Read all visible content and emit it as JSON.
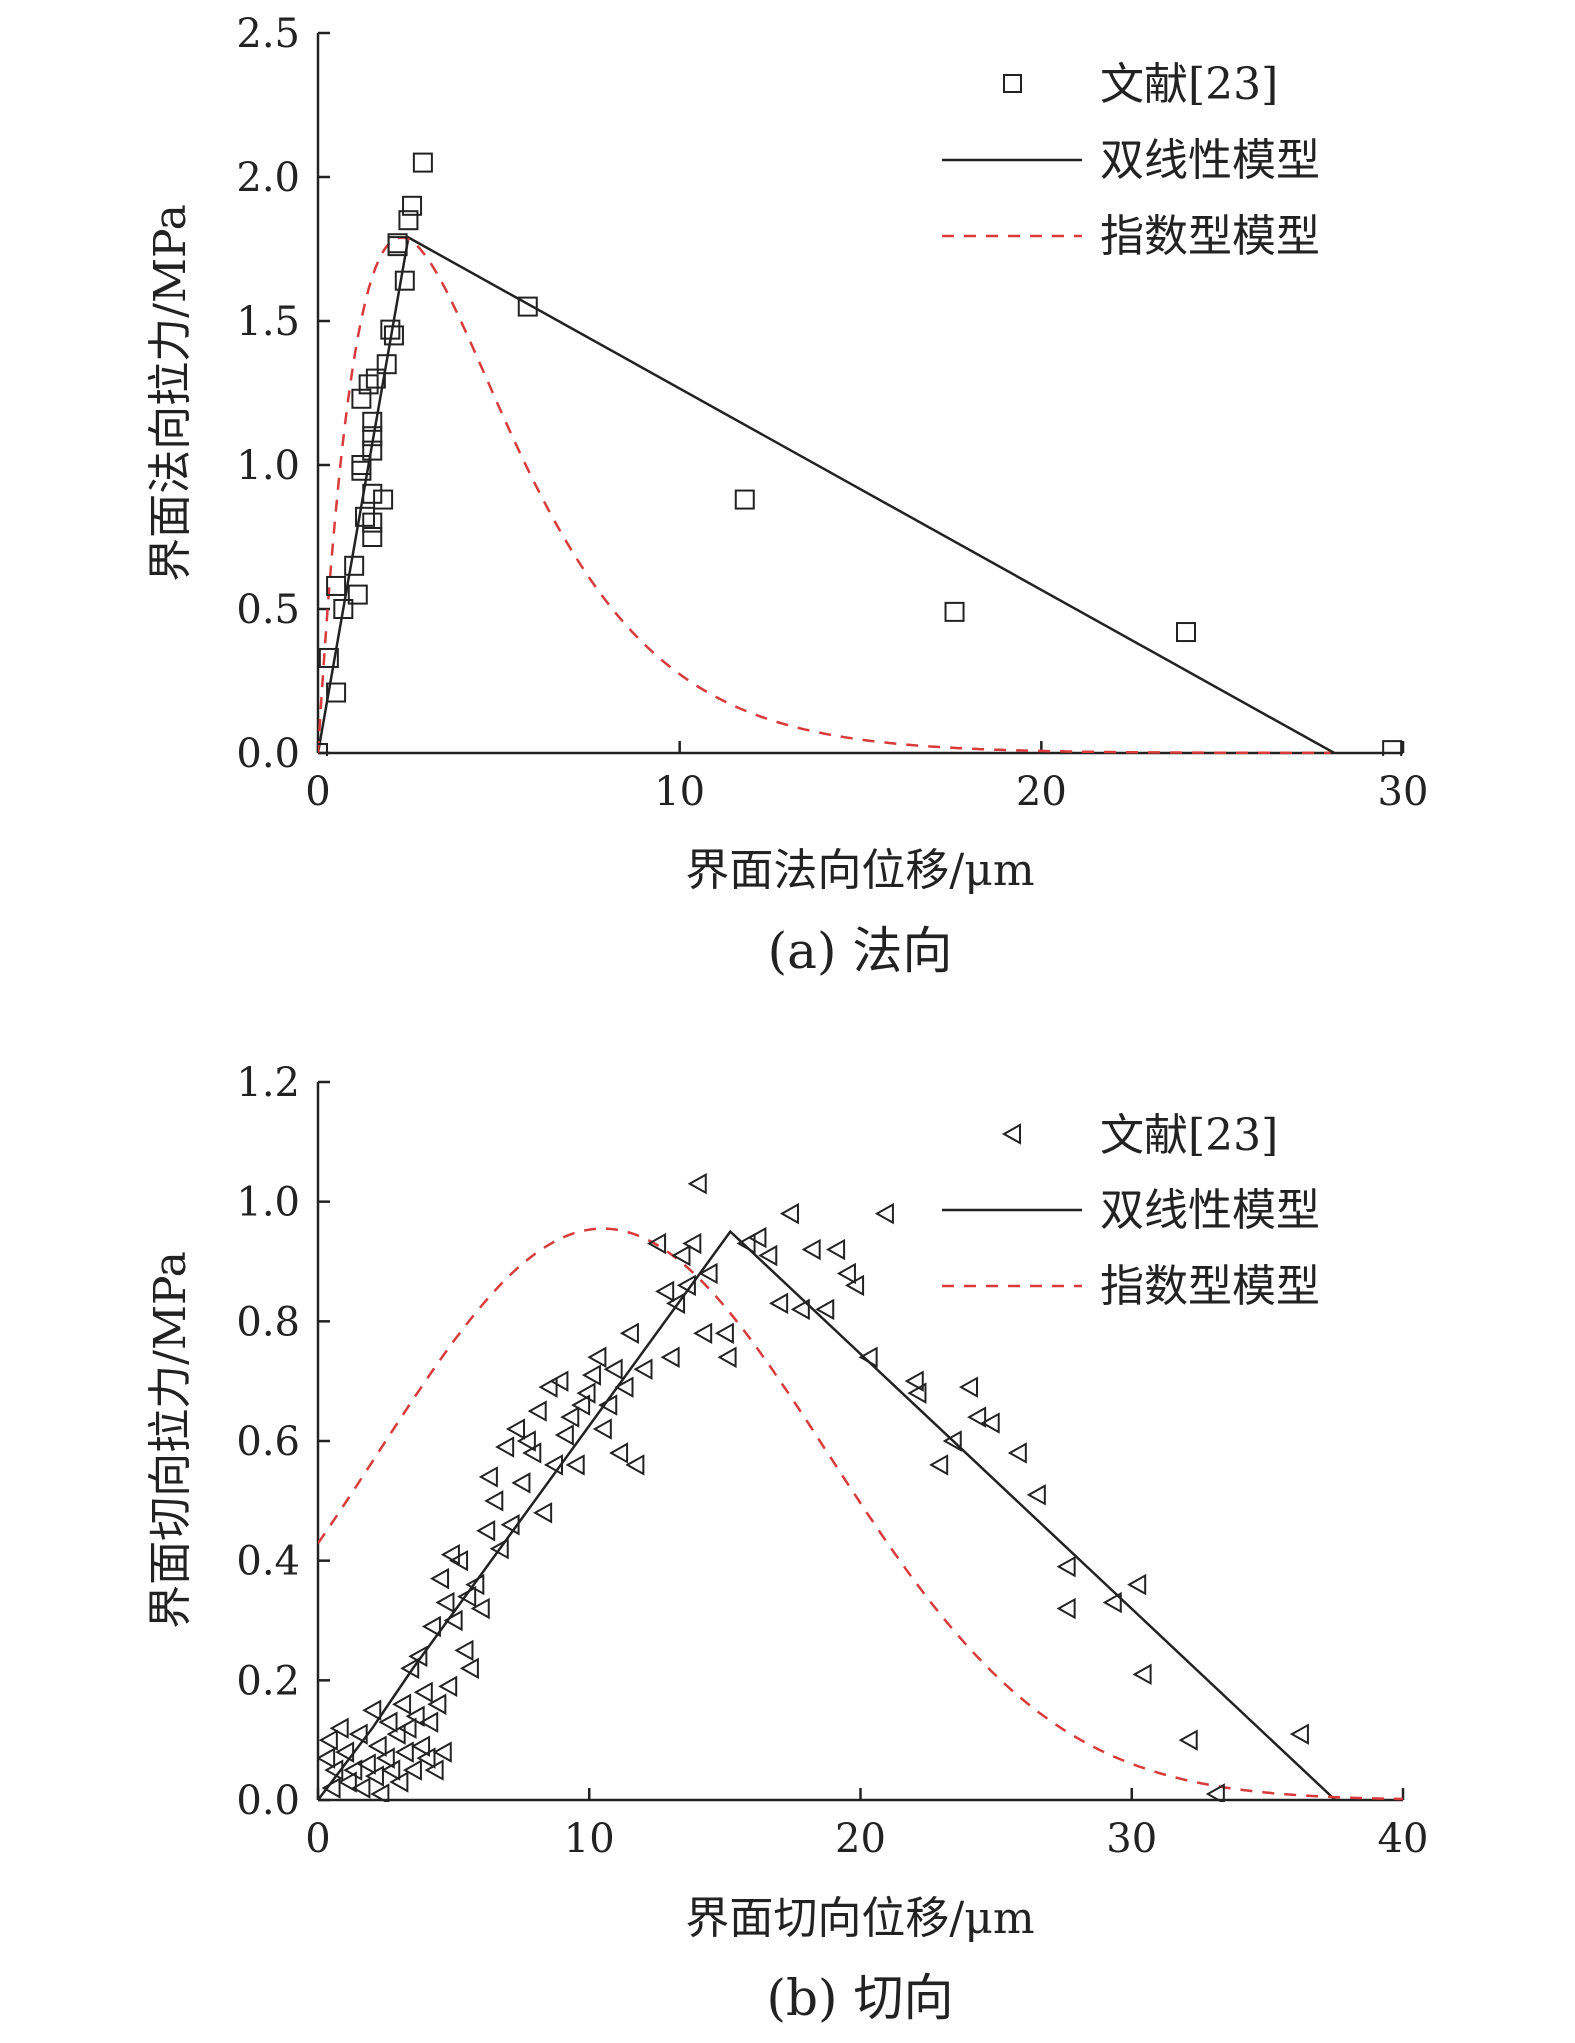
{
  "chart_data": [
    {
      "type": "scatter",
      "caption": "(a) 法向",
      "xlabel": "界面法向位移/μm",
      "ylabel": "界面法向拉力/MPa",
      "xlim": [
        0,
        30
      ],
      "ylim": [
        0,
        2.5
      ],
      "xticks": [
        0,
        10,
        20,
        30
      ],
      "xtick_labels": [
        "0",
        "10",
        "20",
        "30"
      ],
      "yticks": [
        0,
        0.5,
        1.0,
        1.5,
        2.0,
        2.5
      ],
      "ytick_labels": [
        "0.0",
        "0.5",
        "1.0",
        "1.5",
        "2.0",
        "2.5"
      ],
      "legend_position": "top-right",
      "grid": false,
      "series": [
        {
          "name": "文献[23]",
          "kind": "scatter",
          "marker": "square",
          "color": "#222222",
          "points": [
            [
              0.0,
              0.0
            ],
            [
              0.3,
              0.33
            ],
            [
              0.5,
              0.21
            ],
            [
              0.5,
              0.58
            ],
            [
              0.7,
              0.5
            ],
            [
              1.0,
              0.65
            ],
            [
              1.1,
              0.55
            ],
            [
              1.2,
              0.98
            ],
            [
              1.2,
              1.23
            ],
            [
              1.2,
              1.0
            ],
            [
              1.3,
              0.82
            ],
            [
              1.4,
              1.28
            ],
            [
              1.5,
              0.9
            ],
            [
              1.5,
              0.8
            ],
            [
              1.5,
              0.75
            ],
            [
              1.5,
              1.15
            ],
            [
              1.5,
              1.05
            ],
            [
              1.5,
              1.1
            ],
            [
              1.6,
              1.3
            ],
            [
              1.8,
              0.88
            ],
            [
              1.9,
              1.35
            ],
            [
              2.0,
              1.47
            ],
            [
              2.1,
              1.45
            ],
            [
              2.2,
              1.76
            ],
            [
              2.2,
              1.77
            ],
            [
              2.4,
              1.64
            ],
            [
              2.5,
              1.85
            ],
            [
              2.6,
              1.9
            ],
            [
              2.9,
              2.05
            ],
            [
              5.8,
              1.55
            ],
            [
              11.8,
              0.88
            ],
            [
              17.6,
              0.49
            ],
            [
              24.0,
              0.42
            ],
            [
              29.7,
              0.01
            ]
          ]
        },
        {
          "name": "双线性模型",
          "kind": "line",
          "color": "#222222",
          "dash": "",
          "points": [
            [
              0,
              0
            ],
            [
              2.5,
              1.79
            ],
            [
              28.1,
              0
            ]
          ]
        },
        {
          "name": "指数型模型",
          "kind": "curve",
          "color": "#d93a3a",
          "dash": "12 10",
          "formula": "exponential traction-separation",
          "peak_x": 2.3,
          "peak_y": 1.79,
          "x_range": [
            0,
            28
          ]
        }
      ]
    },
    {
      "type": "scatter",
      "caption": "(b) 切向",
      "xlabel": "界面切向位移/μm",
      "ylabel": "界面切向拉力/MPa",
      "xlim": [
        0,
        40
      ],
      "ylim": [
        0,
        1.2
      ],
      "xticks": [
        0,
        10,
        20,
        30,
        40
      ],
      "xtick_labels": [
        "0",
        "10",
        "20",
        "30",
        "40"
      ],
      "yticks": [
        0,
        0.2,
        0.4,
        0.6,
        0.8,
        1.0,
        1.2
      ],
      "ytick_labels": [
        "0.0",
        "0.2",
        "0.4",
        "0.6",
        "0.8",
        "1.0",
        "1.2"
      ],
      "legend_position": "top-right",
      "grid": false,
      "series": [
        {
          "name": "文献[23]",
          "kind": "scatter",
          "marker": "triangle-left",
          "color": "#222222",
          "points": [
            [
              0.3,
              0.07
            ],
            [
              0.4,
              0.1
            ],
            [
              0.5,
              0.02
            ],
            [
              0.6,
              0.05
            ],
            [
              0.8,
              0.12
            ],
            [
              1.0,
              0.08
            ],
            [
              1.1,
              0.03
            ],
            [
              1.3,
              0.05
            ],
            [
              1.5,
              0.11
            ],
            [
              1.6,
              0.02
            ],
            [
              1.8,
              0.06
            ],
            [
              2.0,
              0.15
            ],
            [
              2.1,
              0.04
            ],
            [
              2.2,
              0.09
            ],
            [
              2.3,
              0.01
            ],
            [
              2.5,
              0.07
            ],
            [
              2.6,
              0.13
            ],
            [
              2.7,
              0.05
            ],
            [
              2.9,
              0.11
            ],
            [
              3.0,
              0.03
            ],
            [
              3.1,
              0.16
            ],
            [
              3.2,
              0.08
            ],
            [
              3.3,
              0.12
            ],
            [
              3.4,
              0.22
            ],
            [
              3.5,
              0.05
            ],
            [
              3.6,
              0.14
            ],
            [
              3.7,
              0.24
            ],
            [
              3.8,
              0.09
            ],
            [
              3.9,
              0.18
            ],
            [
              4.0,
              0.07
            ],
            [
              4.1,
              0.13
            ],
            [
              4.2,
              0.29
            ],
            [
              4.3,
              0.05
            ],
            [
              4.4,
              0.16
            ],
            [
              4.5,
              0.37
            ],
            [
              4.6,
              0.08
            ],
            [
              4.7,
              0.33
            ],
            [
              4.8,
              0.19
            ],
            [
              4.9,
              0.41
            ],
            [
              5.0,
              0.3
            ],
            [
              5.2,
              0.4
            ],
            [
              5.4,
              0.25
            ],
            [
              5.5,
              0.34
            ],
            [
              5.6,
              0.22
            ],
            [
              5.8,
              0.36
            ],
            [
              6.0,
              0.32
            ],
            [
              6.2,
              0.45
            ],
            [
              6.3,
              0.54
            ],
            [
              6.5,
              0.5
            ],
            [
              6.7,
              0.42
            ],
            [
              6.9,
              0.59
            ],
            [
              7.1,
              0.46
            ],
            [
              7.3,
              0.62
            ],
            [
              7.5,
              0.53
            ],
            [
              7.7,
              0.6
            ],
            [
              7.9,
              0.58
            ],
            [
              8.1,
              0.65
            ],
            [
              8.3,
              0.48
            ],
            [
              8.5,
              0.69
            ],
            [
              8.7,
              0.56
            ],
            [
              8.9,
              0.7
            ],
            [
              9.1,
              0.61
            ],
            [
              9.3,
              0.64
            ],
            [
              9.5,
              0.56
            ],
            [
              9.7,
              0.66
            ],
            [
              9.9,
              0.68
            ],
            [
              10.1,
              0.71
            ],
            [
              10.3,
              0.74
            ],
            [
              10.5,
              0.62
            ],
            [
              10.7,
              0.66
            ],
            [
              10.9,
              0.72
            ],
            [
              11.1,
              0.58
            ],
            [
              11.3,
              0.69
            ],
            [
              11.5,
              0.78
            ],
            [
              11.7,
              0.56
            ],
            [
              12.0,
              0.72
            ],
            [
              12.5,
              0.93
            ],
            [
              12.8,
              0.85
            ],
            [
              13.0,
              0.74
            ],
            [
              13.2,
              0.83
            ],
            [
              13.4,
              0.91
            ],
            [
              13.6,
              0.86
            ],
            [
              13.8,
              0.93
            ],
            [
              14.0,
              1.03
            ],
            [
              14.2,
              0.78
            ],
            [
              14.4,
              0.88
            ],
            [
              15.0,
              0.78
            ],
            [
              15.1,
              0.74
            ],
            [
              15.8,
              0.93
            ],
            [
              16.2,
              0.94
            ],
            [
              16.6,
              0.91
            ],
            [
              17.0,
              0.83
            ],
            [
              17.4,
              0.98
            ],
            [
              17.8,
              0.82
            ],
            [
              18.2,
              0.92
            ],
            [
              18.7,
              0.82
            ],
            [
              19.1,
              0.92
            ],
            [
              19.5,
              0.88
            ],
            [
              19.8,
              0.86
            ],
            [
              20.3,
              0.74
            ],
            [
              20.9,
              0.98
            ],
            [
              22.0,
              0.7
            ],
            [
              22.1,
              0.68
            ],
            [
              22.9,
              0.56
            ],
            [
              23.4,
              0.6
            ],
            [
              24.0,
              0.69
            ],
            [
              24.3,
              0.64
            ],
            [
              24.8,
              0.63
            ],
            [
              25.8,
              0.58
            ],
            [
              26.5,
              0.51
            ],
            [
              27.6,
              0.39
            ],
            [
              27.6,
              0.32
            ],
            [
              29.3,
              0.33
            ],
            [
              30.2,
              0.36
            ],
            [
              30.4,
              0.21
            ],
            [
              32.1,
              0.1
            ],
            [
              33.1,
              0.01
            ],
            [
              36.2,
              0.11
            ]
          ]
        },
        {
          "name": "双线性模型",
          "kind": "line",
          "color": "#222222",
          "dash": "",
          "points": [
            [
              0,
              0
            ],
            [
              2.0,
              0.12
            ],
            [
              3.5,
              0.22
            ],
            [
              15.2,
              0.95
            ],
            [
              37.5,
              0
            ]
          ]
        },
        {
          "name": "指数型模型",
          "kind": "curve",
          "color": "#d93a3a",
          "dash": "12 10",
          "formula": "gaussian",
          "peak_x": 10.5,
          "peak_y": 0.955,
          "x_range": [
            0,
            40
          ]
        }
      ]
    }
  ]
}
